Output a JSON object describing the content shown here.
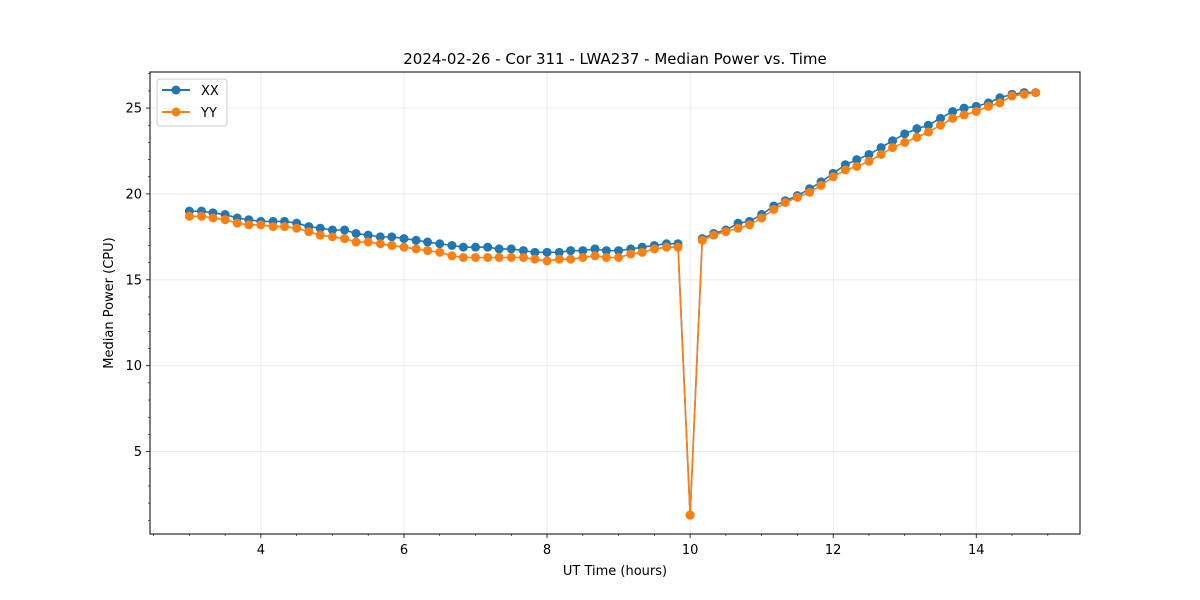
{
  "chart_data": {
    "type": "line",
    "title": "2024-02-26 - Cor 311 - LWA237 - Median Power vs. Time",
    "xlabel": "UT Time (hours)",
    "ylabel": "Median Power (CPU)",
    "xlim": [
      2.45,
      15.45
    ],
    "ylim": [
      0.2,
      27.1
    ],
    "xticks": [
      4,
      6,
      8,
      10,
      12,
      14
    ],
    "xtick_labels": [
      "4",
      "6",
      "8",
      "10",
      "12",
      "14"
    ],
    "yticks": [
      5,
      10,
      15,
      20,
      25
    ],
    "ytick_labels": [
      "5",
      "10",
      "15",
      "20",
      "25"
    ],
    "grid": true,
    "legend_position": "top-left",
    "x": [
      3.0,
      3.17,
      3.33,
      3.5,
      3.67,
      3.83,
      4.0,
      4.17,
      4.33,
      4.5,
      4.67,
      4.83,
      5.0,
      5.17,
      5.33,
      5.5,
      5.67,
      5.83,
      6.0,
      6.17,
      6.33,
      6.5,
      6.67,
      6.83,
      7.0,
      7.17,
      7.33,
      7.5,
      7.67,
      7.83,
      8.0,
      8.17,
      8.33,
      8.5,
      8.67,
      8.83,
      9.0,
      9.17,
      9.33,
      9.5,
      9.67,
      9.83,
      10.0,
      10.17,
      10.33,
      10.5,
      10.67,
      10.83,
      11.0,
      11.17,
      11.33,
      11.5,
      11.67,
      11.83,
      12.0,
      12.17,
      12.33,
      12.5,
      12.67,
      12.83,
      13.0,
      13.17,
      13.33,
      13.5,
      13.67,
      13.83,
      14.0,
      14.17,
      14.33,
      14.5,
      14.67,
      14.83
    ],
    "series": [
      {
        "name": "XX",
        "color": "#1f77b4",
        "values": [
          19.0,
          19.0,
          18.9,
          18.8,
          18.6,
          18.5,
          18.4,
          18.4,
          18.4,
          18.3,
          18.1,
          18.0,
          17.9,
          17.9,
          17.7,
          17.6,
          17.5,
          17.5,
          17.4,
          17.3,
          17.2,
          17.1,
          17.0,
          16.9,
          16.9,
          16.9,
          16.8,
          16.8,
          16.7,
          16.6,
          16.6,
          16.6,
          16.7,
          16.7,
          16.8,
          16.7,
          16.7,
          16.8,
          16.9,
          17.0,
          17.1,
          17.1,
          1.3,
          17.4,
          17.7,
          17.9,
          18.3,
          18.4,
          18.8,
          19.3,
          19.6,
          19.9,
          20.3,
          20.7,
          21.2,
          21.7,
          22.0,
          22.3,
          22.7,
          23.1,
          23.5,
          23.8,
          24.0,
          24.4,
          24.8,
          25.0,
          25.1,
          25.3,
          25.6,
          25.8,
          25.9,
          25.9
        ]
      },
      {
        "name": "YY",
        "color": "#ff7f0e",
        "values": [
          18.7,
          18.7,
          18.6,
          18.5,
          18.3,
          18.2,
          18.2,
          18.1,
          18.1,
          18.0,
          17.8,
          17.6,
          17.5,
          17.4,
          17.2,
          17.2,
          17.1,
          17.0,
          16.9,
          16.8,
          16.7,
          16.6,
          16.4,
          16.3,
          16.3,
          16.3,
          16.3,
          16.3,
          16.3,
          16.2,
          16.1,
          16.2,
          16.2,
          16.3,
          16.4,
          16.3,
          16.3,
          16.5,
          16.6,
          16.8,
          16.9,
          16.9,
          1.3,
          17.3,
          17.6,
          17.8,
          18.0,
          18.2,
          18.6,
          19.1,
          19.5,
          19.8,
          20.1,
          20.5,
          21.0,
          21.4,
          21.6,
          21.9,
          22.3,
          22.7,
          23.0,
          23.3,
          23.6,
          24.0,
          24.4,
          24.6,
          24.8,
          25.1,
          25.3,
          25.7,
          25.8,
          25.9
        ]
      }
    ]
  }
}
